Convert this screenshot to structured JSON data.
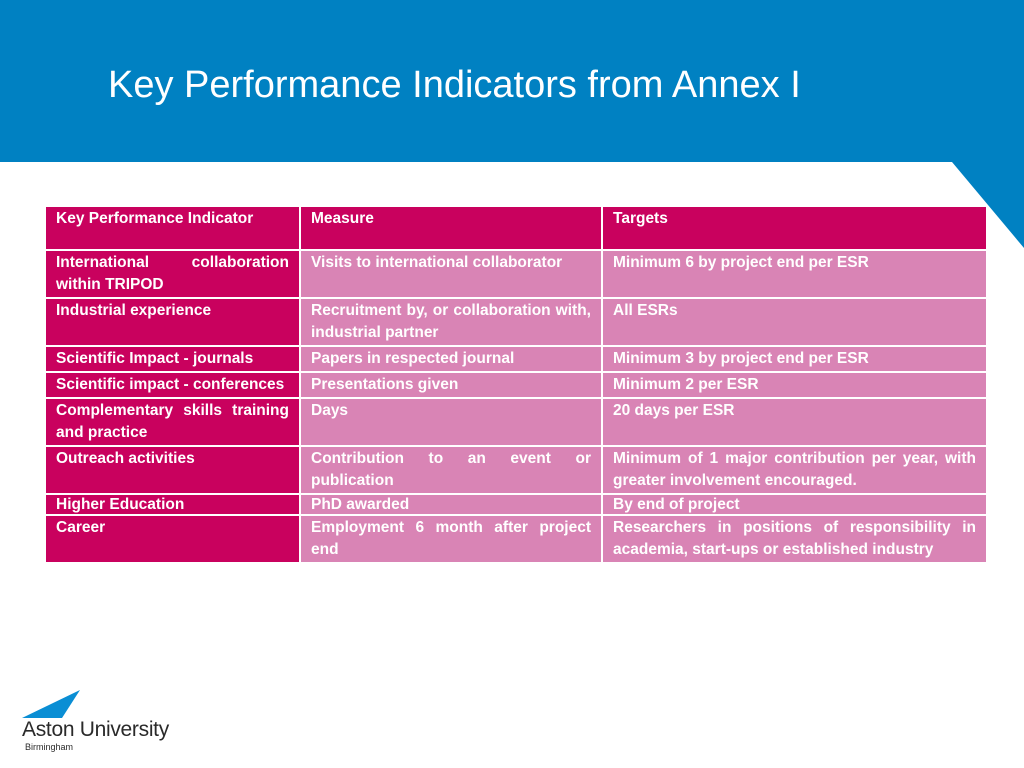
{
  "slide": {
    "title": "Key Performance Indicators from Annex I"
  },
  "colors": {
    "header_blue": "#0081c2",
    "indicator_magenta": "#c9015e",
    "cell_pink": "#d984b5",
    "logo_blue": "#0a8ed4"
  },
  "table": {
    "headers": [
      "Key Performance Indicator",
      "Measure",
      "Targets"
    ],
    "rows": [
      [
        "International collaboration within TRIPOD",
        "Visits to international collaborator",
        "Minimum 6 by project end per ESR"
      ],
      [
        "Industrial experience",
        "Recruitment by, or collaboration with, industrial partner",
        "All ESRs"
      ],
      [
        "Scientific Impact - journals",
        "Papers in respected journal",
        "Minimum 3 by project end per ESR"
      ],
      [
        "Scientific impact - conferences",
        "Presentations given",
        "Minimum 2 per ESR"
      ],
      [
        "Complementary skills training and practice",
        "Days",
        "20 days per ESR"
      ],
      [
        "Outreach activities",
        "Contribution to an event or publication",
        "Minimum of 1 major contribution per year, with greater involvement encouraged."
      ],
      [
        "Higher Education",
        "PhD awarded",
        "By end of project"
      ],
      [
        "Career",
        "Employment 6 month after project end",
        "Researchers in positions of responsibility in academia, start-ups or established industry"
      ]
    ]
  },
  "logo": {
    "name": "Aston University",
    "city": "Birmingham",
    "icon": "aston-logo-triangle-icon"
  }
}
